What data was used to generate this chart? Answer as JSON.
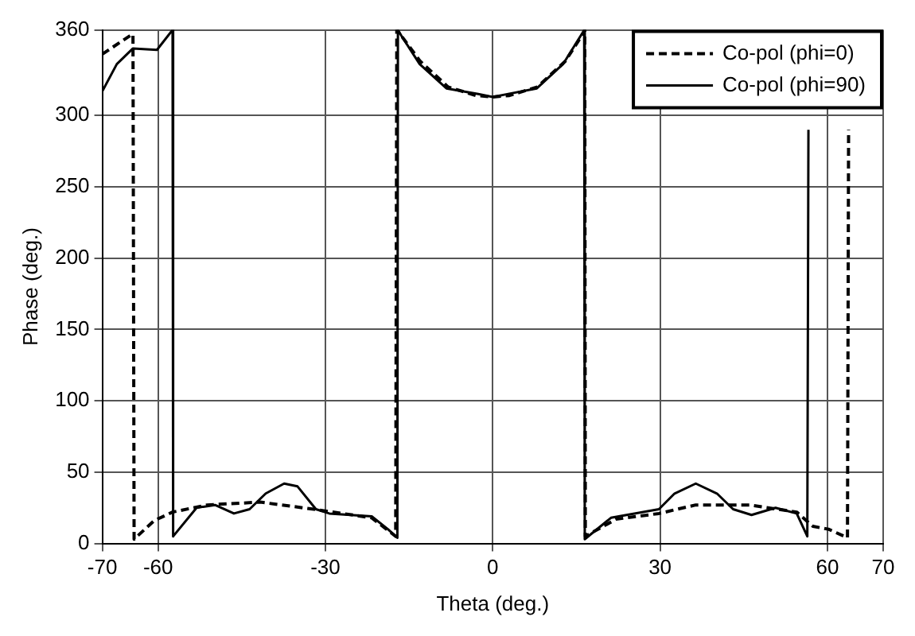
{
  "chart_data": {
    "type": "line",
    "xlabel": "Theta (deg.)",
    "ylabel": "Phase (deg.)",
    "xlim": [
      -70,
      70
    ],
    "xticks": [
      -70,
      -60,
      -30,
      0,
      30,
      60,
      70
    ],
    "ylim": [
      0,
      360
    ],
    "yticks": [
      0,
      50,
      100,
      150,
      200,
      250,
      300,
      360
    ],
    "grid": true,
    "legend": "top right",
    "marker": "none",
    "series": [
      {
        "name": "Co-pol (phi=0)",
        "color": "#000000",
        "line_style": "dashed",
        "x": [
          -70,
          -65,
          -64.5,
          -64.3,
          -60.7,
          -57.4,
          -51.2,
          -41.7,
          -32.1,
          -21.7,
          -17.4,
          -17.2,
          -16.8,
          -13,
          -8,
          -3,
          0,
          3,
          8,
          13,
          16.3,
          16.5,
          16.6,
          22.1,
          29.8,
          36.4,
          46,
          54.5,
          57.4,
          60.2,
          63.6,
          63.8
        ],
        "values": [
          343,
          356,
          357,
          3,
          16,
          22,
          27,
          29,
          24,
          18,
          5,
          360,
          358,
          338,
          320,
          314,
          313,
          314,
          320,
          338,
          358,
          360,
          5,
          17,
          21,
          27,
          27,
          22,
          12,
          10,
          4,
          290
        ]
      },
      {
        "name": "Co-pol (phi=90)",
        "color": "#000000",
        "line_style": "solid",
        "x": [
          -70,
          -67.4,
          -64.5,
          -60.2,
          -57.4,
          -57.3,
          -53.1,
          -49.8,
          -46.4,
          -43.6,
          -40.7,
          -37.4,
          -35,
          -31.7,
          -29.3,
          -21.7,
          -18.8,
          -17.1,
          -17,
          -16.4,
          -13.1,
          -8.3,
          -2.6,
          0,
          2.6,
          7.9,
          12.6,
          16.1,
          16.4,
          16.5,
          21.2,
          29.8,
          32.6,
          36.4,
          40.2,
          43.1,
          46.4,
          50.7,
          54.5,
          56.4,
          56.6
        ],
        "values": [
          317,
          336,
          347,
          346,
          360,
          5,
          25,
          27,
          21,
          24,
          35,
          42,
          40,
          24,
          21,
          19,
          10,
          4,
          360,
          356,
          336,
          319,
          315,
          313,
          315,
          319,
          336,
          358,
          360,
          3,
          18,
          24,
          35,
          42,
          35,
          24,
          20,
          25,
          21,
          5,
          290
        ]
      }
    ]
  }
}
